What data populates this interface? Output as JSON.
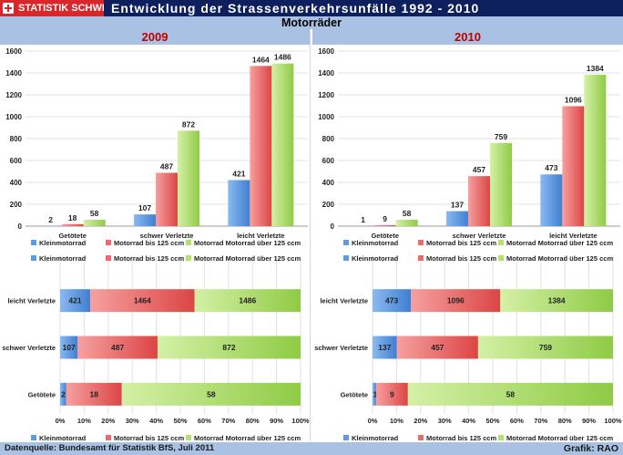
{
  "brand": {
    "logo_text": "STATISTIK SCHWEIZ"
  },
  "header": {
    "title": "Entwicklung der Strassenverkehrsunfälle 1992 - 2010"
  },
  "subheader": {
    "title": "Motorräder"
  },
  "footer": {
    "source": "Datenquelle: Bundesamt für Statistik BfS, Juli 2011",
    "credit": "Grafik: RAO"
  },
  "colors": {
    "kleinmotorrad": "#5b9be3",
    "motorrad_bis_125": "#ee6a6a",
    "motorrad_ueber_125": "#b2e16e",
    "header_bg": "#0d1f5c",
    "band_bg": "#a9c2e4",
    "year_text": "#c00000"
  },
  "chart_data": [
    {
      "type": "bar",
      "title": "2009",
      "categories": [
        "Getötete",
        "schwer Verletzte",
        "leicht Verletzte"
      ],
      "series": [
        {
          "name": "Kleinmotorrad",
          "values": [
            2,
            107,
            421
          ]
        },
        {
          "name": "Motorrad bis 125 ccm",
          "values": [
            18,
            487,
            1464
          ]
        },
        {
          "name": "Motorrad Motorrad über 125 ccm",
          "values": [
            58,
            872,
            1486
          ]
        }
      ],
      "ylim": [
        0,
        1600
      ],
      "yticks": [
        "0",
        "200",
        "400",
        "600",
        "800",
        "1000",
        "1200",
        "1400",
        "1600"
      ],
      "grid": true,
      "legend": "bottom"
    },
    {
      "type": "bar",
      "title": "2010",
      "categories": [
        "Getötete",
        "schwer Verletzte",
        "leicht Verletzte"
      ],
      "series": [
        {
          "name": "Kleinmotorrad",
          "values": [
            1,
            137,
            473
          ]
        },
        {
          "name": "Motorrad bis 125 ccm",
          "values": [
            9,
            457,
            1096
          ]
        },
        {
          "name": "Motorrad Motorrad über 125 ccm",
          "values": [
            58,
            759,
            1384
          ]
        }
      ],
      "ylim": [
        0,
        1600
      ],
      "yticks": [
        "0",
        "200",
        "400",
        "600",
        "800",
        "1000",
        "1200",
        "1400",
        "1600"
      ],
      "grid": true,
      "legend": "bottom"
    },
    {
      "type": "bar",
      "orientation": "horizontal",
      "stacked": "percent",
      "title": "2009",
      "categories": [
        "leicht Verletzte",
        "schwer Verletzte",
        "Getötete"
      ],
      "series": [
        {
          "name": "Kleinmotorrad",
          "values": [
            421,
            107,
            2
          ]
        },
        {
          "name": "Motorrad bis 125 ccm",
          "values": [
            1464,
            487,
            18
          ]
        },
        {
          "name": "Motorrad Motorrad über 125 ccm",
          "values": [
            1486,
            872,
            58
          ]
        }
      ],
      "xticks": [
        "0%",
        "10%",
        "20%",
        "30%",
        "40%",
        "50%",
        "60%",
        "70%",
        "80%",
        "90%",
        "100%"
      ],
      "grid": true,
      "legend": "top-and-bottom"
    },
    {
      "type": "bar",
      "orientation": "horizontal",
      "stacked": "percent",
      "title": "2010",
      "categories": [
        "leicht Verletzte",
        "schwer Verletzte",
        "Getötete"
      ],
      "series": [
        {
          "name": "Kleinmotorrad",
          "values": [
            473,
            137,
            1
          ]
        },
        {
          "name": "Motorrad bis 125 ccm",
          "values": [
            1096,
            457,
            9
          ]
        },
        {
          "name": "Motorrad Motorrad über 125 ccm",
          "values": [
            1384,
            759,
            58
          ]
        }
      ],
      "xticks": [
        "0%",
        "10%",
        "20%",
        "30%",
        "40%",
        "50%",
        "60%",
        "70%",
        "80%",
        "90%",
        "100%"
      ],
      "grid": true,
      "legend": "top-and-bottom"
    }
  ]
}
